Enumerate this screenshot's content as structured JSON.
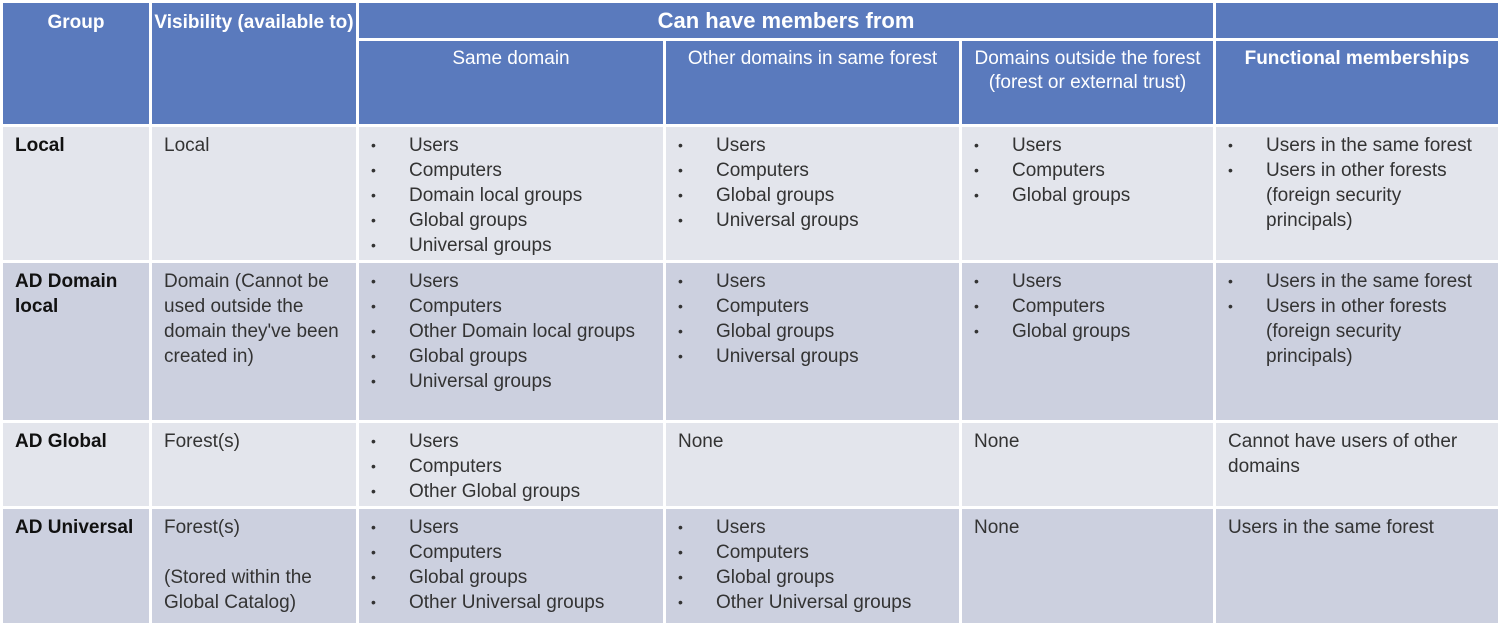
{
  "header": {
    "group": "Group",
    "visibility": "Visibility (available to)",
    "can_have_members": "Can have members from",
    "same_domain": "Same domain",
    "other_domains": "Other domains in same forest",
    "outside_forest": "Domains outside the forest (forest or external trust)",
    "functional": "Functional memberships"
  },
  "rows": [
    {
      "group": "Local",
      "visibility": [
        "Local"
      ],
      "same_domain": [
        "Users",
        "Computers",
        "Domain local groups",
        "Global groups",
        "Universal groups"
      ],
      "other_domains": [
        "Users",
        "Computers",
        "Global groups",
        "Universal groups"
      ],
      "outside_forest": [
        "Users",
        "Computers",
        "Global groups"
      ],
      "functional": [
        "Users in the same forest",
        "Users in other forests (foreign security principals)"
      ]
    },
    {
      "group": "AD Domain local",
      "visibility": [
        "Domain (Cannot be used outside the domain they've been created in)"
      ],
      "same_domain": [
        "Users",
        "Computers",
        "Other Domain local groups",
        "Global groups",
        "Universal groups"
      ],
      "other_domains": [
        "Users",
        "Computers",
        "Global groups",
        "Universal groups"
      ],
      "outside_forest": [
        "Users",
        "Computers",
        "Global groups"
      ],
      "functional": [
        "Users in the same forest",
        "Users in other forests (foreign security principals)"
      ]
    },
    {
      "group": "AD Global",
      "visibility": [
        "Forest(s)"
      ],
      "same_domain": [
        "Users",
        "Computers",
        "Other Global groups"
      ],
      "other_domains_text": "None",
      "outside_forest_text": "None",
      "functional_text": "Cannot have users of other domains"
    },
    {
      "group": "AD Universal",
      "visibility": [
        "Forest(s)",
        "(Stored within the Global Catalog)"
      ],
      "same_domain": [
        "Users",
        "Computers",
        "Global groups",
        "Other Universal groups"
      ],
      "other_domains": [
        "Users",
        "Computers",
        "Global groups",
        "Other Universal groups"
      ],
      "outside_forest_text": "None",
      "functional_text": "Users in the same forest"
    }
  ],
  "colors": {
    "header": "#5a7abd",
    "row_light": "#e3e5ec",
    "row_dark": "#ccd0df"
  }
}
